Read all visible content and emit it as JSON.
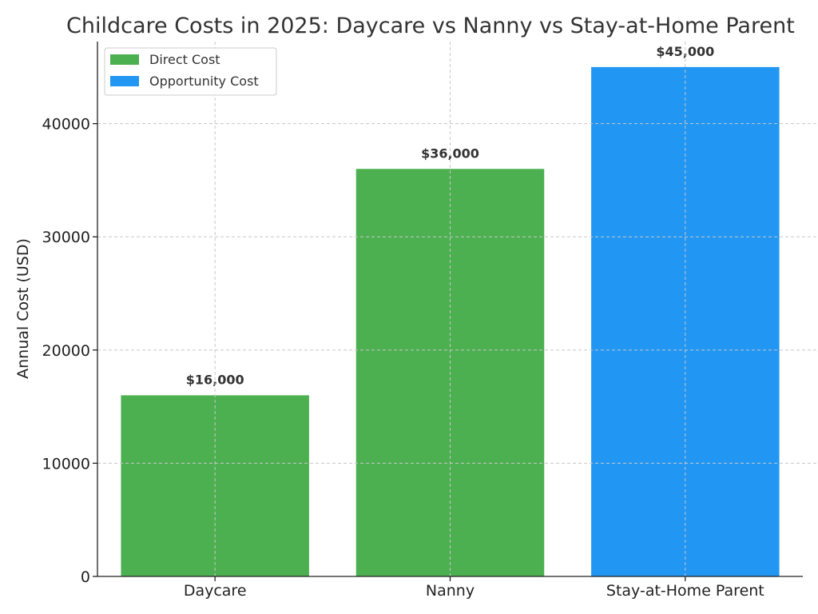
{
  "chart_data": {
    "type": "bar",
    "title": "Childcare Costs in 2025: Daycare vs Nanny vs Stay-at-Home Parent",
    "xlabel": "",
    "ylabel": "Annual Cost (USD)",
    "ylim": [
      0,
      47250
    ],
    "yticks": [
      0,
      10000,
      20000,
      30000,
      40000
    ],
    "grid": true,
    "legend_position": "top-left",
    "categories": [
      "Daycare",
      "Nanny",
      "Stay-at-Home Parent"
    ],
    "values": [
      16000,
      36000,
      45000
    ],
    "value_labels": [
      "$16,000",
      "$36,000",
      "$45,000"
    ],
    "bar_types": [
      "direct",
      "direct",
      "opportunity"
    ],
    "legend": [
      {
        "key": "direct",
        "label": "Direct Cost",
        "color": "#4caf50"
      },
      {
        "key": "opportunity",
        "label": "Opportunity Cost",
        "color": "#2196f3"
      }
    ]
  }
}
